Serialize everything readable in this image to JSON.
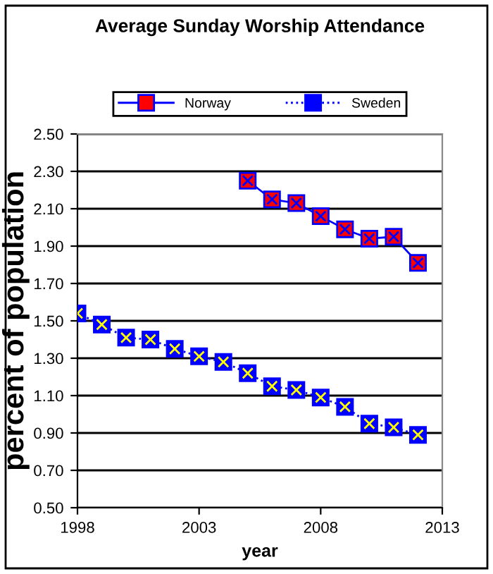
{
  "chart_data": {
    "type": "line",
    "title": "Average Sunday Worship Attendance",
    "xlabel": "year",
    "ylabel": "percent of population",
    "series": [
      {
        "name": "Norway",
        "color": "#ff0000",
        "x": [
          2005,
          2006,
          2007,
          2008,
          2009,
          2010,
          2011,
          2012
        ],
        "values": [
          2.25,
          2.15,
          2.13,
          2.06,
          1.99,
          1.94,
          1.95,
          1.81
        ],
        "marker": "square",
        "line_style": "solid"
      },
      {
        "name": "Sweden",
        "color": "#0000ff",
        "x": [
          1998,
          1999,
          2000,
          2001,
          2002,
          2003,
          2004,
          2005,
          2006,
          2007,
          2008,
          2009,
          2010,
          2011,
          2012
        ],
        "values": [
          1.54,
          1.48,
          1.41,
          1.4,
          1.35,
          1.31,
          1.28,
          1.22,
          1.15,
          1.13,
          1.09,
          1.04,
          0.95,
          0.93,
          0.89
        ],
        "marker": "square",
        "line_style": "dotted"
      }
    ],
    "xlim": [
      1998,
      2013
    ],
    "xticks": [
      1998,
      2003,
      2008,
      2013
    ],
    "ylim": [
      0.5,
      2.5
    ],
    "yticks": [
      {
        "value": 0.5,
        "label": "0.50"
      },
      {
        "value": 0.7,
        "label": "0.70"
      },
      {
        "value": 0.9,
        "label": "0.90"
      },
      {
        "value": 1.1,
        "label": "1.10"
      },
      {
        "value": 1.3,
        "label": "1.30"
      },
      {
        "value": 1.5,
        "label": "1.50"
      },
      {
        "value": 1.7,
        "label": "1.70"
      },
      {
        "value": 1.9,
        "label": "1.90"
      },
      {
        "value": 2.1,
        "label": "2.10"
      },
      {
        "value": 2.3,
        "label": "2.30"
      },
      {
        "value": 2.5,
        "label": "2.50"
      }
    ],
    "grid": "y",
    "legend": "top"
  }
}
